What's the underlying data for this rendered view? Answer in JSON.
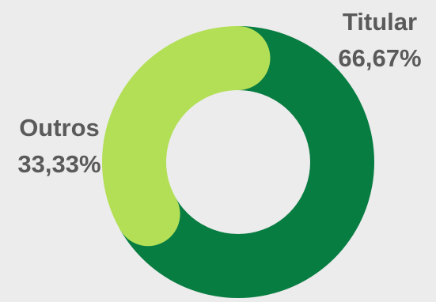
{
  "chart_data": {
    "type": "pie",
    "variant": "donut",
    "series": [
      {
        "name": "Titular",
        "value": 66.67,
        "label": "66,67%",
        "color": "#087d42"
      },
      {
        "name": "Outros",
        "value": 33.33,
        "label": "33,33%",
        "color": "#b3df57"
      }
    ],
    "legend": "none"
  },
  "colors": {
    "background": "#ececec",
    "label_text": "#5a5a5a"
  }
}
